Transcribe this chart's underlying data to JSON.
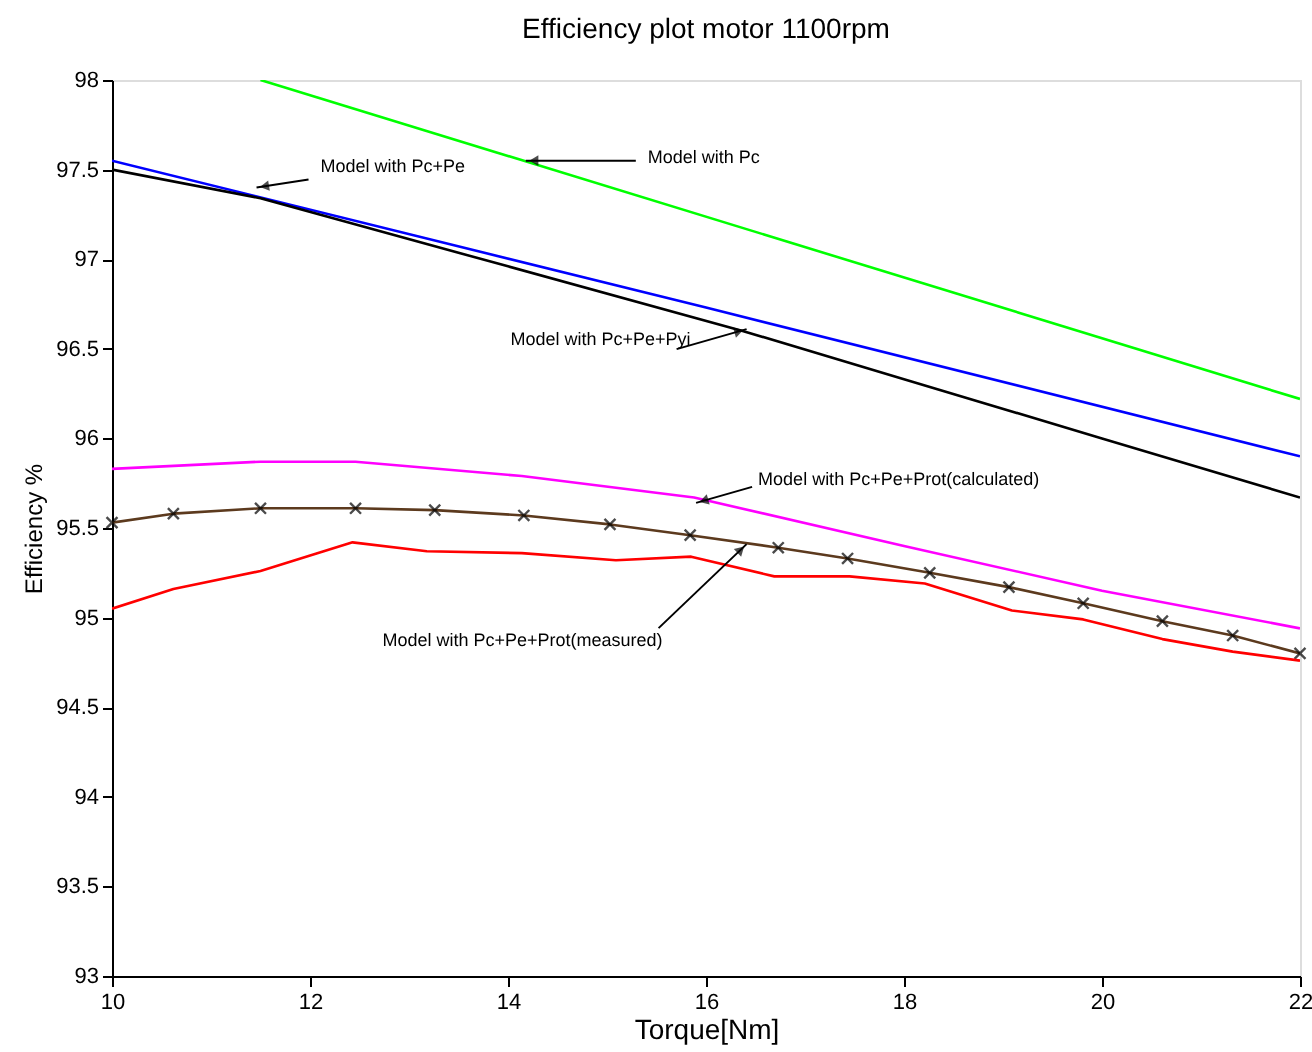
{
  "chart_data": {
    "type": "line",
    "title": "Efficiency plot motor 1100rpm",
    "xlabel": "Torque[Nm]",
    "ylabel": "Efficiency %",
    "xlim": [
      10,
      22
    ],
    "ylim": [
      93,
      98
    ],
    "xticks": [
      10,
      12,
      14,
      16,
      18,
      20,
      22
    ],
    "yticks": [
      93,
      93.5,
      94,
      94.5,
      95,
      95.5,
      96,
      96.5,
      97,
      97.5,
      98
    ],
    "grid": false,
    "line_style": "solid",
    "series": [
      {
        "color": "#00ff00",
        "x": [
          11.5,
          22
        ],
        "values": [
          98.0,
          96.22
        ]
      },
      {
        "color": "#0000ff",
        "x": [
          10,
          16,
          22
        ],
        "values": [
          97.55,
          96.73,
          95.9
        ]
      },
      {
        "color": "#000000",
        "x": [
          10,
          11.5,
          14,
          16.37,
          18,
          20,
          22
        ],
        "values": [
          97.5,
          97.34,
          96.96,
          96.6,
          96.33,
          96.0,
          95.67
        ]
      },
      {
        "color": "#ff00ff",
        "x": [
          10,
          11.5,
          12.46,
          14.14,
          15.88,
          18,
          20,
          22
        ],
        "values": [
          95.83,
          95.87,
          95.87,
          95.79,
          95.67,
          95.4,
          95.15,
          94.94
        ]
      },
      {
        "color": "#5c3a1e",
        "marker": "cross",
        "x": [
          10,
          10.62,
          11.5,
          12.46,
          13.26,
          14.16,
          15.03,
          15.84,
          16.73,
          17.43,
          18.26,
          19.06,
          19.81,
          20.61,
          21.32,
          22
        ],
        "values": [
          95.53,
          95.58,
          95.61,
          95.61,
          95.6,
          95.57,
          95.52,
          95.46,
          95.39,
          95.33,
          95.25,
          95.17,
          95.08,
          94.98,
          94.9,
          94.8
        ]
      },
      {
        "color": "#ff0000",
        "x": [
          10,
          10.62,
          11.5,
          12.43,
          13.18,
          14.14,
          15.09,
          15.85,
          16.69,
          17.45,
          18.21,
          19.09,
          19.81,
          20.61,
          21.32,
          22
        ],
        "values": [
          95.05,
          95.16,
          95.26,
          95.42,
          95.37,
          95.36,
          95.32,
          95.34,
          95.23,
          95.23,
          95.19,
          95.04,
          94.99,
          94.88,
          94.81,
          94.76
        ]
      }
    ],
    "annotations": [
      {
        "text": "Model with Pc",
        "x": 14.18,
        "y": 97.55
      },
      {
        "text": "Model with Pc+Pe",
        "x": 11.46,
        "y": 97.4
      },
      {
        "text": "Model with Pc+Pe+Pyi",
        "x": 16.41,
        "y": 96.61
      },
      {
        "text": "Model with Pc+Pe+Prot(calculated)",
        "x": 15.9,
        "y": 95.64
      },
      {
        "text": "Model with Pc+Pe+Prot(measured)",
        "x": 16.41,
        "y": 95.41
      }
    ]
  }
}
